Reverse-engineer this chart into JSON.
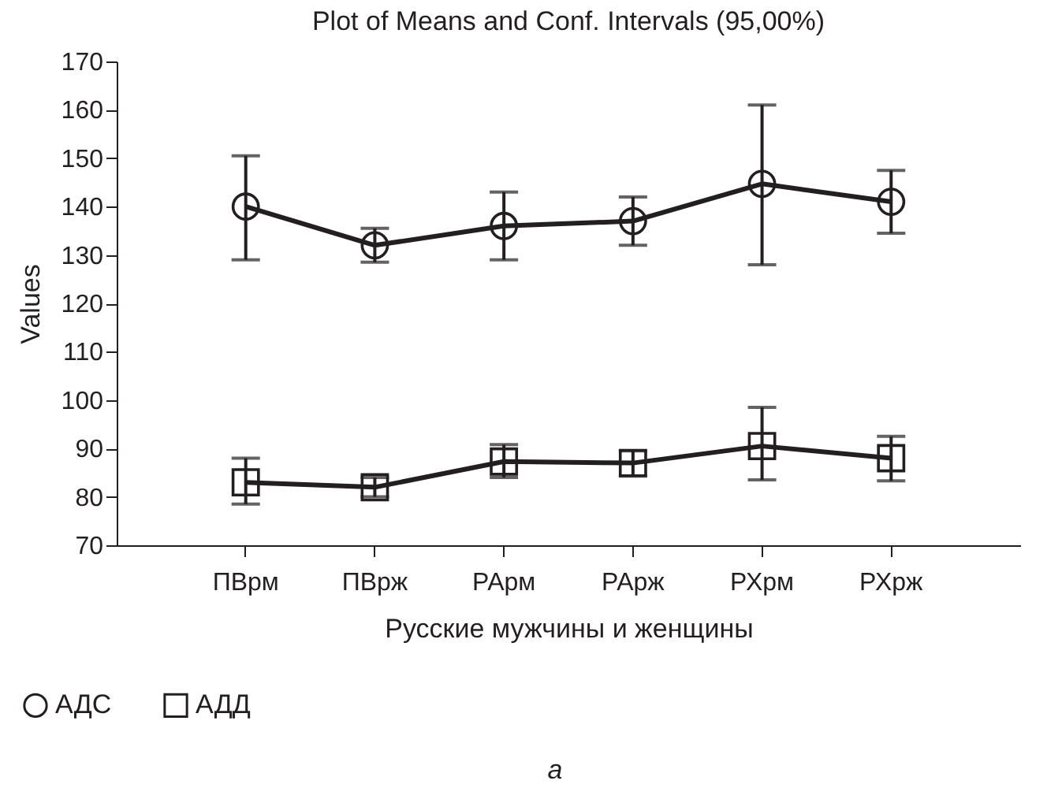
{
  "chart_data": {
    "type": "line",
    "title": "Plot of Means and Conf. Intervals (95,00%)",
    "xlabel": "Русские мужчины и женщины",
    "ylabel": "Values",
    "categories": [
      "ПВрм",
      "ПВрж",
      "РАрм",
      "РАрж",
      "РХрм",
      "РХрж"
    ],
    "series": [
      {
        "name": "АДС",
        "color": "#231f20",
        "marker": "circle",
        "values": [
          140,
          132,
          136,
          137,
          144.7,
          141
        ],
        "errors": [
          [
            129,
            150.5
          ],
          [
            128.5,
            135.5
          ],
          [
            129,
            143
          ],
          [
            132,
            142
          ],
          [
            128,
            161
          ],
          [
            134.5,
            147.5
          ]
        ]
      },
      {
        "name": "АДД",
        "color": "#231f20",
        "marker": "square",
        "values": [
          83,
          82,
          87.3,
          87,
          90.5,
          88
        ],
        "errors": [
          [
            78.5,
            88
          ],
          [
            80,
            84
          ],
          [
            84,
            90.8
          ],
          [
            84.3,
            89.5
          ],
          [
            83.5,
            98.5
          ],
          [
            83.3,
            92.5
          ]
        ]
      }
    ],
    "ylim": [
      70,
      170
    ],
    "yticks": [
      70,
      80,
      90,
      100,
      110,
      120,
      130,
      140,
      150,
      160,
      170
    ],
    "grid": false,
    "legend": "bottom left",
    "line_style": "solid",
    "annotations": [
      "a"
    ]
  }
}
